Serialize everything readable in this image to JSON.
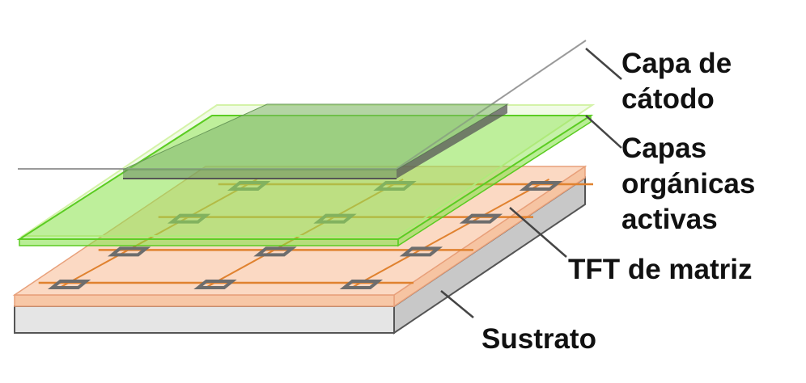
{
  "labels": {
    "cathode": [
      "Capa de",
      "cátodo"
    ],
    "organic": [
      "Capas",
      "orgánicas",
      "activas"
    ],
    "tft": "TFT de matriz",
    "substrate": "Sustrato"
  },
  "colors": {
    "substrate_top": "#fbd9c3",
    "substrate_front": "#e5e5e5",
    "substrate_side": "#c8c8c8",
    "substrate_edge": "#555555",
    "copper": "#f2b58c",
    "trace": "#e0822f",
    "tft_pad": "#6d6d6d",
    "organic_fill": "#80e040",
    "organic_edge": "#5bcc22",
    "cathode_fill": "#7fb56b",
    "cathode_edge": "#555555",
    "leader": "#444444"
  },
  "tft_grid": {
    "rows": 4,
    "columns": 3
  }
}
